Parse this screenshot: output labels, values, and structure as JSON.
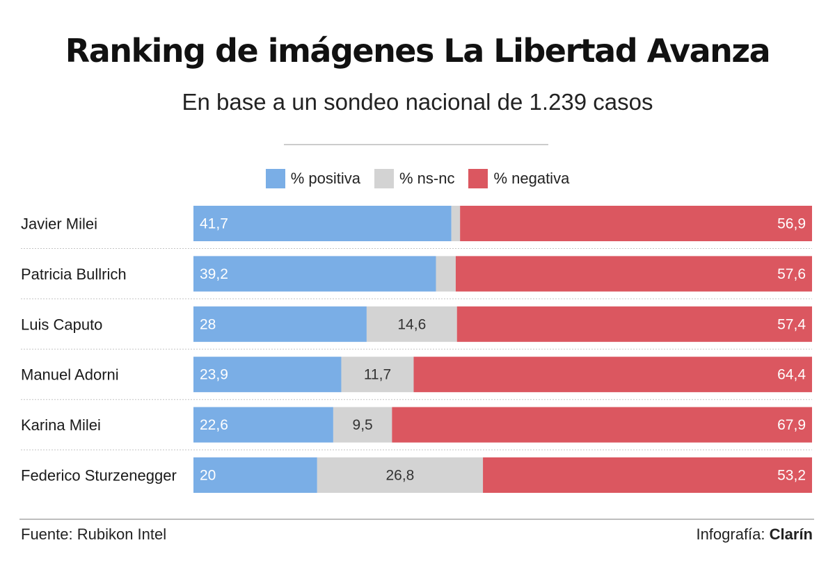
{
  "chart_data": {
    "type": "bar",
    "stacked": true,
    "orientation": "horizontal",
    "title": "Ranking de imágenes La Libertad Avanza",
    "subtitle": "En base a un sondeo nacional de 1.239 casos",
    "categories": [
      "Javier Milei",
      "Patricia Bullrich",
      "Luis Caputo",
      "Manuel Adorni",
      "Karina Milei",
      "Federico Sturzenegger"
    ],
    "series": [
      {
        "name": "% positiva",
        "color": "#7aaee6",
        "values": [
          41.7,
          39.2,
          28,
          23.9,
          22.6,
          20
        ],
        "labels": [
          "41,7",
          "39,2",
          "28",
          "23,9",
          "22,6",
          "20"
        ]
      },
      {
        "name": "% ns-nc",
        "color": "#d3d3d3",
        "values": [
          1.4,
          3.2,
          14.6,
          11.7,
          9.5,
          26.8
        ],
        "labels": [
          "",
          "",
          "14,6",
          "11,7",
          "9,5",
          "26,8"
        ]
      },
      {
        "name": "% negativa",
        "color": "#db5760",
        "values": [
          56.9,
          57.6,
          57.4,
          64.4,
          67.9,
          53.2
        ],
        "labels": [
          "56,9",
          "57,6",
          "57,4",
          "64,4",
          "67,9",
          "53,2"
        ]
      }
    ],
    "xlim": [
      0,
      100
    ],
    "legend": "top-center",
    "grid": false
  },
  "footer": {
    "source": "Fuente: Rubikon Intel",
    "credit_prefix": "Infografía: ",
    "credit_brand": "Clarín"
  }
}
